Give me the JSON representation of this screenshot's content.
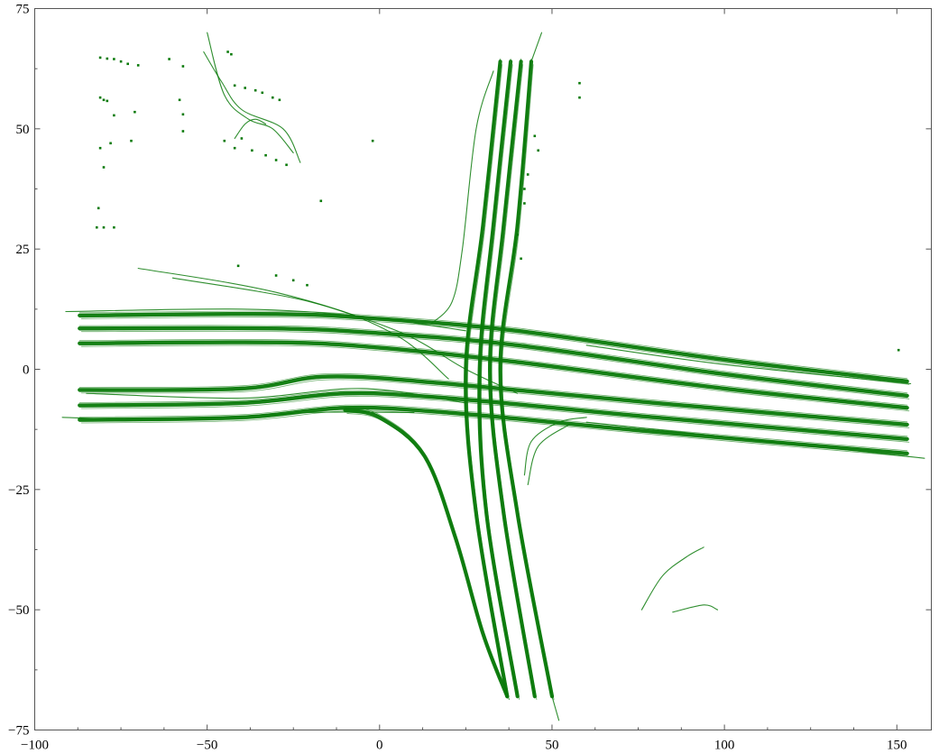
{
  "chart_data": {
    "type": "line",
    "title": "",
    "xlabel": "",
    "ylabel": "",
    "xlim": [
      -100,
      160
    ],
    "ylim": [
      -75,
      75
    ],
    "x_ticks": [
      -100,
      -50,
      0,
      50,
      100,
      150
    ],
    "y_ticks": [
      75,
      50,
      25,
      0,
      -25,
      -50,
      -75
    ],
    "x_tick_labels": [
      "−100",
      "−50",
      "0",
      "50",
      "100",
      "150"
    ],
    "y_tick_labels": [
      "75",
      "50",
      "25",
      "0",
      "−25",
      "−50",
      "−75"
    ],
    "grid": false,
    "legend": "none",
    "color": "#0a7a0a",
    "series": [
      {
        "weight": "heavy",
        "points": [
          [
            -87,
            11.2
          ],
          [
            -30,
            11.5
          ],
          [
            0,
            10.5
          ],
          [
            40,
            8
          ],
          [
            100,
            2
          ],
          [
            153,
            -2.5
          ]
        ]
      },
      {
        "weight": "heavy",
        "points": [
          [
            -87,
            8.5
          ],
          [
            -30,
            8.5
          ],
          [
            0,
            7.5
          ],
          [
            40,
            5
          ],
          [
            100,
            -1
          ],
          [
            153,
            -5.5
          ]
        ]
      },
      {
        "weight": "heavy",
        "points": [
          [
            -87,
            5.4
          ],
          [
            -30,
            5.6
          ],
          [
            0,
            4.5
          ],
          [
            40,
            1.5
          ],
          [
            100,
            -4
          ],
          [
            153,
            -8
          ]
        ]
      },
      {
        "weight": "heavy",
        "points": [
          [
            -87,
            -4.3
          ],
          [
            -40,
            -4
          ],
          [
            -15,
            -1.5
          ],
          [
            20,
            -3
          ],
          [
            80,
            -7
          ],
          [
            153,
            -11.5
          ]
        ]
      },
      {
        "weight": "heavy",
        "points": [
          [
            -87,
            -7.5
          ],
          [
            -40,
            -7
          ],
          [
            -10,
            -5
          ],
          [
            20,
            -6
          ],
          [
            80,
            -10
          ],
          [
            153,
            -14.5
          ]
        ]
      },
      {
        "weight": "heavy",
        "points": [
          [
            -87,
            -10.5
          ],
          [
            -40,
            -10
          ],
          [
            -10,
            -8
          ],
          [
            20,
            -9
          ],
          [
            80,
            -13
          ],
          [
            153,
            -17.5
          ]
        ]
      },
      {
        "weight": "heavy",
        "points": [
          [
            35,
            64
          ],
          [
            30,
            30
          ],
          [
            25,
            0
          ],
          [
            28,
            -30
          ],
          [
            37,
            -68
          ]
        ]
      },
      {
        "weight": "heavy",
        "points": [
          [
            38,
            64
          ],
          [
            33,
            30
          ],
          [
            29,
            0
          ],
          [
            31,
            -30
          ],
          [
            40,
            -68
          ]
        ]
      },
      {
        "weight": "heavy",
        "points": [
          [
            41,
            64
          ],
          [
            36,
            30
          ],
          [
            32,
            0
          ],
          [
            36,
            -30
          ],
          [
            45,
            -68
          ]
        ]
      },
      {
        "weight": "heavy",
        "points": [
          [
            44,
            64
          ],
          [
            40,
            30
          ],
          [
            35,
            0
          ],
          [
            40,
            -30
          ],
          [
            50,
            -68
          ]
        ]
      },
      {
        "weight": "heavy",
        "points": [
          [
            -10,
            -8.5
          ],
          [
            0,
            -10
          ],
          [
            13,
            -18
          ],
          [
            22,
            -35
          ],
          [
            30,
            -55
          ],
          [
            37,
            -68
          ]
        ]
      },
      {
        "weight": "thin",
        "points": [
          [
            15,
            9.5
          ],
          [
            21,
            14
          ],
          [
            24,
            25
          ],
          [
            28,
            50
          ],
          [
            33,
            62
          ]
        ]
      },
      {
        "weight": "thin",
        "points": [
          [
            -70,
            21
          ],
          [
            -30,
            16
          ],
          [
            5,
            8
          ],
          [
            25,
            0
          ],
          [
            40,
            -5
          ]
        ]
      },
      {
        "weight": "thin",
        "points": [
          [
            -60,
            19
          ],
          [
            -20,
            14
          ],
          [
            5,
            7
          ],
          [
            20,
            -2
          ]
        ]
      },
      {
        "weight": "thin",
        "points": [
          [
            42,
            -22
          ],
          [
            44,
            -15
          ],
          [
            52,
            -11
          ],
          [
            60,
            -10
          ]
        ]
      },
      {
        "weight": "thin",
        "points": [
          [
            43,
            -24
          ],
          [
            46,
            -16
          ],
          [
            55,
            -11.5
          ]
        ]
      },
      {
        "weight": "thin",
        "points": [
          [
            -85,
            -5
          ],
          [
            -40,
            -6
          ],
          [
            -5,
            -4
          ],
          [
            25,
            -7
          ]
        ]
      },
      {
        "weight": "thin",
        "points": [
          [
            -92,
            -10
          ],
          [
            -60,
            -10.5
          ],
          [
            -20,
            -9
          ],
          [
            10,
            -9
          ]
        ]
      },
      {
        "weight": "thin",
        "points": [
          [
            -91,
            12
          ],
          [
            -40,
            12.5
          ],
          [
            -5,
            11
          ],
          [
            25,
            8
          ]
        ]
      },
      {
        "weight": "thin",
        "points": [
          [
            154,
            -3
          ],
          [
            100,
            1
          ],
          [
            60,
            5
          ]
        ]
      },
      {
        "weight": "thin",
        "points": [
          [
            158,
            -18.5
          ],
          [
            100,
            -14
          ],
          [
            60,
            -11
          ]
        ]
      },
      {
        "weight": "thin",
        "points": [
          [
            -50,
            70
          ],
          [
            -45,
            57
          ],
          [
            -38,
            52
          ],
          [
            -31,
            50
          ],
          [
            -25,
            45
          ]
        ]
      },
      {
        "weight": "thin",
        "points": [
          [
            -51,
            66
          ],
          [
            -46,
            60
          ],
          [
            -40,
            54
          ],
          [
            -28,
            50
          ],
          [
            -23,
            43
          ]
        ]
      },
      {
        "weight": "thin",
        "points": [
          [
            -42,
            48
          ],
          [
            -39,
            51
          ],
          [
            -36,
            52
          ],
          [
            -33,
            51
          ]
        ]
      },
      {
        "weight": "thin",
        "points": [
          [
            76,
            -50
          ],
          [
            82,
            -43
          ],
          [
            89,
            -39
          ],
          [
            94,
            -37
          ]
        ]
      },
      {
        "weight": "thin",
        "points": [
          [
            85,
            -50.5
          ],
          [
            94,
            -49
          ],
          [
            98,
            -50
          ]
        ]
      },
      {
        "weight": "thin",
        "points": [
          [
            47,
            70
          ],
          [
            44,
            64
          ]
        ]
      },
      {
        "weight": "thin",
        "points": [
          [
            52,
            -73
          ],
          [
            50,
            -68
          ]
        ]
      }
    ],
    "scatter_points": [
      [
        -81,
        64.8
      ],
      [
        -79,
        64.6
      ],
      [
        -77,
        64.5
      ],
      [
        -75,
        64
      ],
      [
        -73,
        63.5
      ],
      [
        -70,
        63.2
      ],
      [
        -61,
        64.5
      ],
      [
        -57,
        63
      ],
      [
        -81,
        56.5
      ],
      [
        -80,
        56
      ],
      [
        -79,
        55.8
      ],
      [
        -77,
        52.8
      ],
      [
        -71,
        53.5
      ],
      [
        -58,
        56
      ],
      [
        -57,
        53
      ],
      [
        -57,
        49.5
      ],
      [
        -81,
        46
      ],
      [
        -80,
        42
      ],
      [
        -78,
        47
      ],
      [
        -72,
        47.5
      ],
      [
        -81.5,
        33.5
      ],
      [
        -82,
        29.5
      ],
      [
        -80,
        29.5
      ],
      [
        -77,
        29.5
      ],
      [
        -44,
        66
      ],
      [
        -43,
        65.5
      ],
      [
        -42,
        59
      ],
      [
        -39,
        58.5
      ],
      [
        -36,
        58
      ],
      [
        -34,
        57.5
      ],
      [
        -31,
        56.5
      ],
      [
        -29,
        56
      ],
      [
        -45,
        47.5
      ],
      [
        -42,
        46
      ],
      [
        -37,
        45.5
      ],
      [
        -33,
        44.5
      ],
      [
        -30,
        43.5
      ],
      [
        -27,
        42.5
      ],
      [
        -40,
        48
      ],
      [
        -2,
        47.5
      ],
      [
        -17,
        35
      ],
      [
        -41,
        21.5
      ],
      [
        -30,
        19.5
      ],
      [
        -25,
        18.5
      ],
      [
        -21,
        17.5
      ],
      [
        58,
        59.5
      ],
      [
        58,
        56.5
      ],
      [
        45,
        48.5
      ],
      [
        46,
        45.5
      ],
      [
        43,
        40.5
      ],
      [
        42,
        37.5
      ],
      [
        42,
        34.5
      ],
      [
        40,
        30
      ],
      [
        40,
        28
      ],
      [
        39,
        25
      ],
      [
        38,
        20
      ],
      [
        150.5,
        4
      ],
      [
        41,
        23
      ]
    ]
  }
}
